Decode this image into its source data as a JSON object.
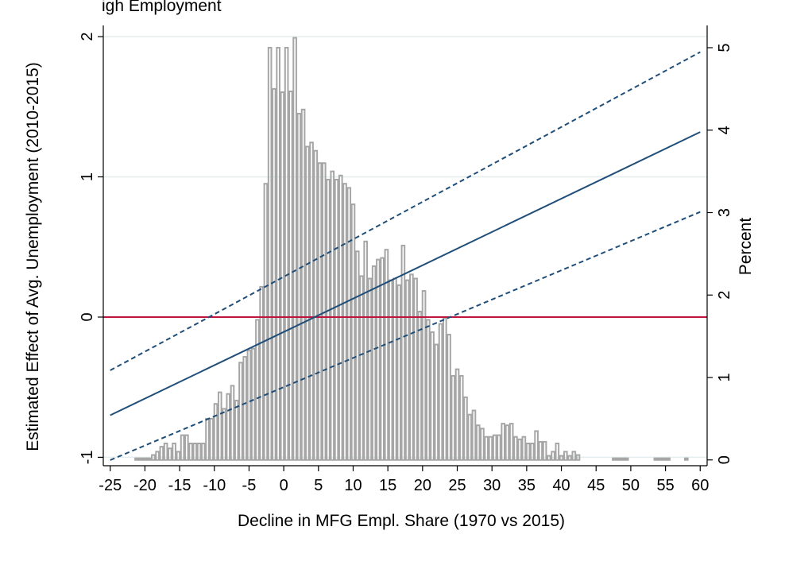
{
  "header": {
    "clipped_text": "igh Employment"
  },
  "chart_data": {
    "type": "line",
    "xlabel": "Decline in MFG Empl. Share (1970 vs 2015)",
    "ylabel": "Estimated Effect of Avg. Unemployment (2010-2015)",
    "y2label": "Percent",
    "xlim": [
      -26,
      61
    ],
    "ylim": [
      -1.06,
      2.08
    ],
    "y2lim": [
      -0.07,
      5.27
    ],
    "xticks": [
      -25,
      -20,
      -15,
      -10,
      -5,
      0,
      5,
      10,
      15,
      20,
      25,
      30,
      35,
      40,
      45,
      50,
      55,
      60
    ],
    "yticks": [
      -1,
      0,
      1,
      2
    ],
    "y2ticks": [
      0,
      1,
      2,
      3,
      4,
      5
    ],
    "grid": true,
    "reference_line": {
      "y": 0,
      "color": "#c0143c"
    },
    "series": [
      {
        "style": "solid",
        "color": "#1f4e79",
        "x": [
          -25,
          60
        ],
        "y": [
          -0.7,
          1.32
        ]
      },
      {
        "style": "dashed",
        "color": "#1f4e79",
        "x": [
          -25,
          60
        ],
        "y": [
          -0.38,
          1.89
        ]
      },
      {
        "style": "dashed",
        "color": "#1f4e79",
        "x": [
          -25,
          60
        ],
        "y": [
          -1.02,
          0.75
        ]
      }
    ],
    "histogram": {
      "axis": "right",
      "color": "#a6a6a6",
      "bin_width": 0.6,
      "x": [
        -21.2,
        -20.6,
        -20,
        -19.4,
        -18.8,
        -18.2,
        -17.6,
        -17,
        -16.4,
        -15.8,
        -15.2,
        -14.6,
        -14,
        -13.4,
        -12.8,
        -12.2,
        -11.6,
        -11,
        -10.4,
        -9.8,
        -9.2,
        -8.6,
        -8,
        -7.4,
        -6.8,
        -6.2,
        -5.6,
        -5,
        -4.4,
        -3.8,
        -3.2,
        -2.6,
        -2,
        -1.4,
        -0.8,
        -0.2,
        0.4,
        1,
        1.6,
        2.2,
        2.8,
        3.4,
        4,
        4.6,
        5.2,
        5.8,
        6.4,
        7,
        7.6,
        8.2,
        8.8,
        9.4,
        10,
        10.6,
        11.2,
        11.8,
        12.4,
        13,
        13.6,
        14.2,
        14.8,
        15.4,
        16,
        16.6,
        17.2,
        17.8,
        18.4,
        19,
        19.6,
        20.2,
        20.8,
        21.4,
        22,
        22.6,
        23.2,
        23.8,
        24.4,
        25,
        25.6,
        26.2,
        26.8,
        27.4,
        28,
        28.6,
        29.2,
        29.8,
        30.4,
        31,
        31.6,
        32.2,
        32.8,
        33.4,
        34,
        34.6,
        35.2,
        35.8,
        36.4,
        37,
        37.6,
        38.2,
        38.8,
        39.4,
        40,
        40.6,
        41.2,
        41.8,
        42.4,
        47.6,
        48.2,
        48.8,
        49.4,
        53.6,
        54.2,
        54.8,
        55.4,
        58
      ],
      "values": [
        0.02,
        0.02,
        0.02,
        0.02,
        0.06,
        0.1,
        0.16,
        0.2,
        0.14,
        0.2,
        0.1,
        0.3,
        0.3,
        0.2,
        0.2,
        0.2,
        0.2,
        0.5,
        0.5,
        0.68,
        0.82,
        0.62,
        0.8,
        0.9,
        0.72,
        1.18,
        1.25,
        1.33,
        1.35,
        1.7,
        2.1,
        3.35,
        5.0,
        4.5,
        5.0,
        4.46,
        5.0,
        4.47,
        5.12,
        4.2,
        4.25,
        3.8,
        3.85,
        3.75,
        3.6,
        3.6,
        3.4,
        3.5,
        3.4,
        3.45,
        3.35,
        3.3,
        3.1,
        2.53,
        2.23,
        2.65,
        2.2,
        2.35,
        2.43,
        2.45,
        2.55,
        2.18,
        2.2,
        2.12,
        2.6,
        2.18,
        2.25,
        2.2,
        1.8,
        2.05,
        1.7,
        1.55,
        1.4,
        1.65,
        1.72,
        1.52,
        1.02,
        1.1,
        1.02,
        0.76,
        0.55,
        0.6,
        0.42,
        0.38,
        0.28,
        0.28,
        0.3,
        0.3,
        0.44,
        0.42,
        0.44,
        0.28,
        0.25,
        0.28,
        0.2,
        0.2,
        0.35,
        0.22,
        0.22,
        0.05,
        0.1,
        0.2,
        0.05,
        0.1,
        0.05,
        0.1,
        0.06,
        0.02,
        0.02,
        0.02,
        0.02,
        0.02,
        0.02,
        0.02,
        0.02,
        0.02
      ]
    }
  }
}
